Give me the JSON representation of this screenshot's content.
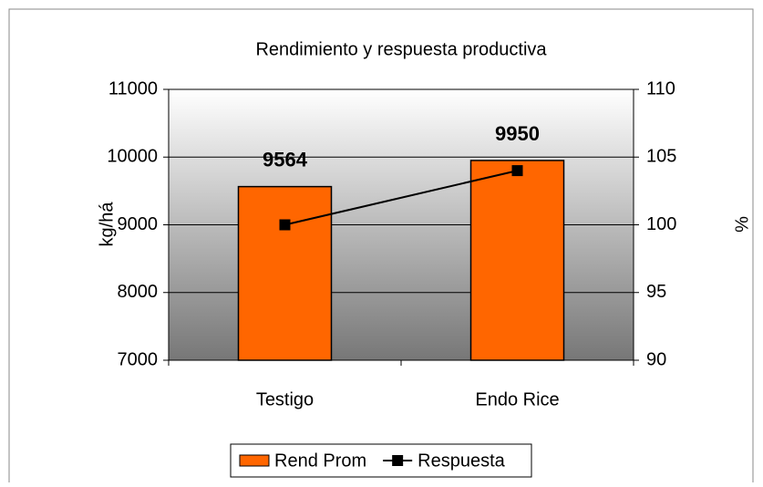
{
  "chart_data": {
    "type": "bar",
    "title": "Rendimiento y respuesta productiva",
    "y_label": "kg/há",
    "y2_label": "%",
    "categories": [
      "Testigo",
      "Endo Rice"
    ],
    "series": [
      {
        "name": "Rend Prom",
        "type": "bar",
        "color": "#ff6600",
        "values": [
          9564,
          9950
        ]
      },
      {
        "name": "Respuesta",
        "type": "line",
        "color": "#000000",
        "values": [
          100,
          104
        ],
        "axis": "y2"
      }
    ],
    "ylim": [
      7000,
      11000
    ],
    "yticks": [
      7000,
      8000,
      9000,
      10000,
      11000
    ],
    "y2lim": [
      90,
      110
    ],
    "y2ticks": [
      90,
      95,
      100,
      105,
      110
    ],
    "grid": true,
    "legend": "bottom"
  }
}
